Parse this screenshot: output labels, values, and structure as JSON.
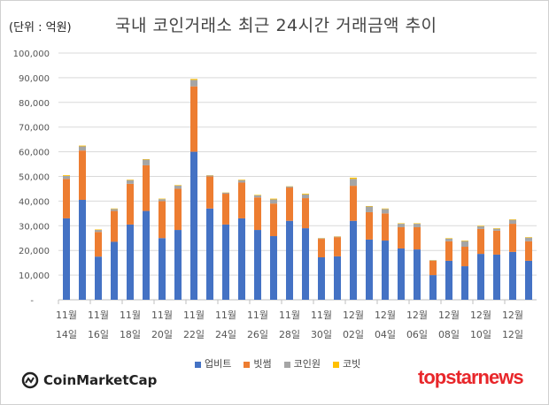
{
  "unit_label": "(단위 : 억원)",
  "chart_data": {
    "type": "bar",
    "stacked": true,
    "title": "국내 코인거래소 최근 24시간 거래금액 추이",
    "ylim": [
      0,
      100000
    ],
    "yticks": [
      "-",
      "10,000",
      "20,000",
      "30,000",
      "40,000",
      "50,000",
      "60,000",
      "70,000",
      "80,000",
      "90,000",
      "100,000"
    ],
    "grid": true,
    "legend_position": "bottom",
    "categories": [
      "11/14",
      "11/15",
      "11/16",
      "11/17",
      "11/18",
      "11/19",
      "11/20",
      "11/21",
      "11/22",
      "11/23",
      "11/24",
      "11/25",
      "11/26",
      "11/27",
      "11/28",
      "11/29",
      "11/30",
      "12/01",
      "12/02",
      "12/03",
      "12/04",
      "12/05",
      "12/06",
      "12/07",
      "12/08",
      "12/09",
      "12/10",
      "12/11",
      "12/12",
      "12/13"
    ],
    "xtick_labels": [
      [
        "11월",
        "14일"
      ],
      [
        "11월",
        "16일"
      ],
      [
        "11월",
        "18일"
      ],
      [
        "11월",
        "20일"
      ],
      [
        "11월",
        "22일"
      ],
      [
        "11월",
        "24일"
      ],
      [
        "11월",
        "26일"
      ],
      [
        "11월",
        "28일"
      ],
      [
        "11월",
        "30일"
      ],
      [
        "12월",
        "02일"
      ],
      [
        "12월",
        "04일"
      ],
      [
        "12월",
        "06일"
      ],
      [
        "12월",
        "08일"
      ],
      [
        "12월",
        "10일"
      ],
      [
        "12월",
        "12일"
      ]
    ],
    "series": [
      {
        "name": "업비트",
        "color": "#4472c4",
        "values": [
          33000,
          40500,
          17500,
          23500,
          30500,
          36000,
          25000,
          28300,
          60000,
          37000,
          30500,
          33000,
          28300,
          25800,
          32000,
          29000,
          17200,
          17600,
          32000,
          24400,
          24000,
          20800,
          20400,
          10000,
          15800,
          13600,
          18600,
          18300,
          19400,
          15800
        ]
      },
      {
        "name": "빗썸",
        "color": "#ed7d31",
        "values": [
          16000,
          20000,
          10000,
          12500,
          16500,
          18500,
          15000,
          16700,
          26500,
          13000,
          12500,
          14500,
          13200,
          13200,
          13500,
          12200,
          7500,
          7800,
          14200,
          11100,
          11000,
          8600,
          9000,
          5800,
          7900,
          7900,
          10100,
          9700,
          11400,
          7900
        ]
      },
      {
        "name": "코인원",
        "color": "#a5a5a5",
        "values": [
          1200,
          1700,
          800,
          800,
          1500,
          2300,
          800,
          1300,
          2600,
          400,
          400,
          1000,
          800,
          1700,
          400,
          1500,
          200,
          200,
          2800,
          2300,
          1800,
          1400,
          1400,
          200,
          1100,
          2300,
          1100,
          800,
          1600,
          1500
        ]
      },
      {
        "name": "코빗",
        "color": "#ffc000",
        "values": [
          300,
          300,
          200,
          200,
          200,
          200,
          200,
          200,
          400,
          100,
          100,
          200,
          200,
          300,
          100,
          300,
          100,
          100,
          500,
          200,
          200,
          200,
          200,
          100,
          200,
          200,
          200,
          200,
          200,
          200
        ]
      }
    ]
  },
  "logos": {
    "left": "CoinMarketCap",
    "right": "topstarnews"
  }
}
